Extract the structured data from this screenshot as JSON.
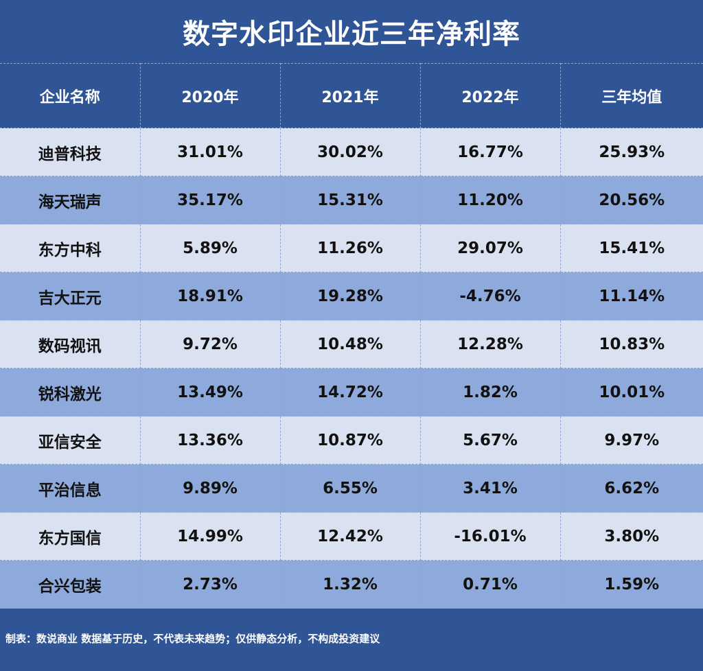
{
  "chart_data": {
    "type": "table",
    "title": "数字水印企业近三年净利率",
    "columns": [
      "企业名称",
      "2020年",
      "2021年",
      "2022年",
      "三年均值"
    ],
    "rows": [
      [
        "迪普科技",
        "31.01%",
        "30.02%",
        "16.77%",
        "25.93%"
      ],
      [
        "海天瑞声",
        "35.17%",
        "15.31%",
        "11.20%",
        "20.56%"
      ],
      [
        "东方中科",
        "5.89%",
        "11.26%",
        "29.07%",
        "15.41%"
      ],
      [
        "吉大正元",
        "18.91%",
        "19.28%",
        "-4.76%",
        "11.14%"
      ],
      [
        "数码视讯",
        "9.72%",
        "10.48%",
        "12.28%",
        "10.83%"
      ],
      [
        "锐科激光",
        "13.49%",
        "14.72%",
        "1.82%",
        "10.01%"
      ],
      [
        "亚信安全",
        "13.36%",
        "10.87%",
        "5.67%",
        "9.97%"
      ],
      [
        "平治信息",
        "9.89%",
        "6.55%",
        "3.41%",
        "6.62%"
      ],
      [
        "东方国信",
        "14.99%",
        "12.42%",
        "-16.01%",
        "3.80%"
      ],
      [
        "合兴包装",
        "2.73%",
        "1.32%",
        "0.71%",
        "1.59%"
      ]
    ],
    "footer": "制表：数说商业 数据基于历史，不代表未来趋势；仅供静态分析，不构成投资建议"
  },
  "colors": {
    "background": "#2f5597",
    "row_light": "#dae1f1",
    "row_dark": "#8eaadc",
    "header_text": "#ffffff",
    "cell_text": "#111111"
  }
}
